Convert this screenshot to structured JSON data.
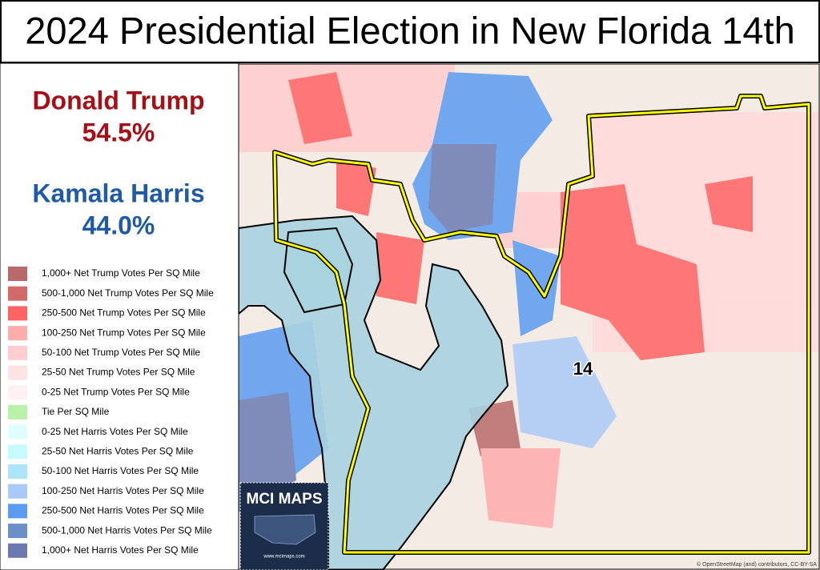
{
  "header": {
    "title": "2024 Presidential Election in New Florida 14th"
  },
  "results": [
    {
      "candidate": "Donald Trump",
      "share": "54.5%",
      "color": "#a50f15"
    },
    {
      "candidate": "Kamala Harris",
      "share": "44.0%",
      "color": "#1f5aa6"
    }
  ],
  "legend": [
    {
      "label": "1,000+ Net Trump Votes Per SQ Mile",
      "color": "#b86a6a"
    },
    {
      "label": "500-1,000 Net Trump Votes Per SQ Mile",
      "color": "#d36a6a"
    },
    {
      "label": "250-500 Net Trump Votes Per SQ Mile",
      "color": "#ff6363"
    },
    {
      "label": "100-250 Net Trump Votes Per SQ Mile",
      "color": "#ffacac"
    },
    {
      "label": "50-100 Net Trump Votes Per SQ Mile",
      "color": "#ffcdcd"
    },
    {
      "label": "25-50 Net Trump Votes Per SQ Mile",
      "color": "#ffe2e2"
    },
    {
      "label": "0-25 Net Trump Votes Per SQ Mile",
      "color": "#fff1f1"
    },
    {
      "label": "Tie Per SQ Mile",
      "color": "#b9f1a9"
    },
    {
      "label": "0-25 Net Harris Votes Per SQ Mile",
      "color": "#e0fdfd"
    },
    {
      "label": "25-50 Net Harris Votes Per SQ Mile",
      "color": "#c6fafc"
    },
    {
      "label": "50-100 Net Harris Votes Per SQ Mile",
      "color": "#ace5fa"
    },
    {
      "label": "100-250 Net Harris Votes Per SQ Mile",
      "color": "#a9c9f7"
    },
    {
      "label": "250-500 Net Harris Votes Per SQ Mile",
      "color": "#5b9bf0"
    },
    {
      "label": "500-1,000 Net Harris Votes Per SQ Mile",
      "color": "#6a8fc9"
    },
    {
      "label": "1,000+ Net Harris Votes Per SQ Mile",
      "color": "#6b7bb1"
    }
  ],
  "map": {
    "district_label": "14",
    "attribution": "© OpenStreetMap (and) contributors, CC-BY-SA"
  },
  "logo": {
    "name": "MCI MAPS",
    "url": "www.mcimaps.com"
  }
}
